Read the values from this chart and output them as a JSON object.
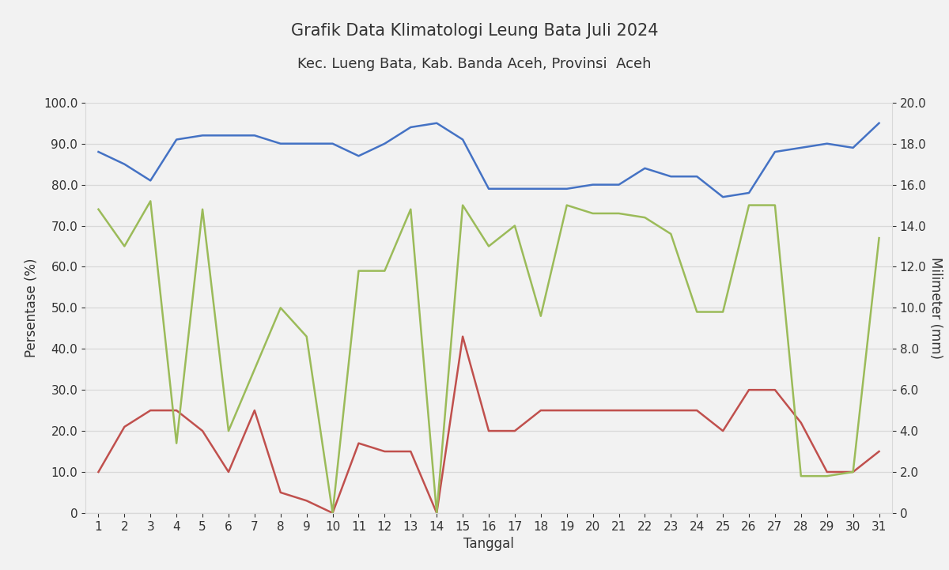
{
  "title_line1": "Grafik Data Klimatologi Leung Bata Juli 2024",
  "title_line2": "Kec. Lueng Bata, Kab. Banda Aceh, Provinsi  Aceh",
  "xlabel": "Tanggal",
  "ylabel_left": "Persentase (%)",
  "ylabel_right": "Milimeter (mm)",
  "x": [
    1,
    2,
    3,
    4,
    5,
    6,
    7,
    8,
    9,
    10,
    11,
    12,
    13,
    14,
    15,
    16,
    17,
    18,
    19,
    20,
    21,
    22,
    23,
    24,
    25,
    26,
    27,
    28,
    29,
    30,
    31
  ],
  "blue_line": [
    88,
    85,
    81,
    91,
    92,
    92,
    92,
    90,
    90,
    90,
    87,
    90,
    94,
    95,
    91,
    79,
    79,
    79,
    79,
    80,
    80,
    84,
    82,
    82,
    77,
    78,
    88,
    89,
    90,
    89,
    95
  ],
  "red_line": [
    10,
    21,
    25,
    25,
    20,
    10,
    25,
    5,
    3,
    0,
    17,
    15,
    15,
    0,
    43,
    20,
    20,
    25,
    25,
    25,
    25,
    25,
    25,
    25,
    20,
    30,
    30,
    22,
    10,
    10,
    15
  ],
  "green_line": [
    74,
    65,
    76,
    17,
    74,
    20,
    35,
    50,
    43,
    0,
    59,
    59,
    74,
    0,
    75,
    65,
    70,
    48,
    75,
    73,
    73,
    72,
    68,
    49,
    49,
    75,
    75,
    9,
    9,
    10,
    67
  ],
  "ylim_left": [
    0,
    100
  ],
  "ylim_right": [
    0,
    20
  ],
  "yticks_left": [
    0,
    10.0,
    20.0,
    30.0,
    40.0,
    50.0,
    60.0,
    70.0,
    80.0,
    90.0,
    100.0
  ],
  "yticks_right": [
    0,
    2.0,
    4.0,
    6.0,
    8.0,
    10.0,
    12.0,
    14.0,
    16.0,
    18.0,
    20.0
  ],
  "blue_color": "#4472C4",
  "red_color": "#C0504D",
  "green_color": "#9BBB59",
  "grid_color": "#D9D9D9",
  "bg_color": "#F2F2F2",
  "title_fontsize": 15,
  "subtitle_fontsize": 13,
  "axis_label_fontsize": 12,
  "tick_fontsize": 11
}
